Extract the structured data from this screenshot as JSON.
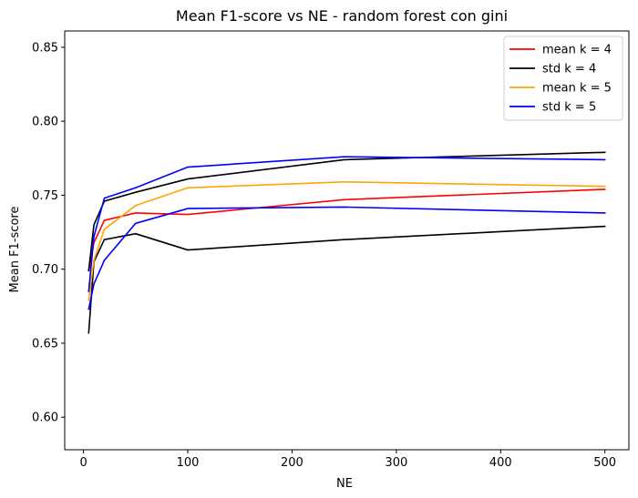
{
  "chart_data": {
    "type": "line",
    "title": "Mean F1-score vs NE - random forest con gini",
    "xlabel": "NE",
    "ylabel": "Mean F1-score",
    "xlim": [
      -18,
      523
    ],
    "ylim": [
      0.578,
      0.861
    ],
    "x_ticks": [
      0,
      100,
      200,
      300,
      400,
      500
    ],
    "y_ticks": [
      0.6,
      0.65,
      0.7,
      0.75,
      0.8,
      0.85
    ],
    "grid": false,
    "legend_position": "top-right",
    "x": [
      5,
      10,
      20,
      50,
      100,
      250,
      500
    ],
    "series": [
      {
        "name": "mean k = 4",
        "color": "#ff0000",
        "values": [
          0.699,
          0.718,
          0.733,
          0.738,
          0.737,
          0.747,
          0.754
        ]
      },
      {
        "name": "std k = 4",
        "color": "#000000",
        "values": [
          0.657,
          0.705,
          0.72,
          0.724,
          0.713,
          0.72,
          0.729
        ]
      },
      {
        "name": "std k = 4",
        "color": "#000000",
        "values": [
          0.699,
          0.73,
          0.746,
          0.752,
          0.761,
          0.774,
          0.779
        ]
      },
      {
        "name": "mean k = 5",
        "color": "#ffa500",
        "values": [
          0.679,
          0.706,
          0.727,
          0.743,
          0.755,
          0.759,
          0.756
        ]
      },
      {
        "name": "std k = 5",
        "color": "#0000ff",
        "values": [
          0.673,
          0.69,
          0.706,
          0.731,
          0.741,
          0.742,
          0.738
        ]
      },
      {
        "name": "std k = 5",
        "color": "#0000ff",
        "values": [
          0.685,
          0.722,
          0.748,
          0.755,
          0.769,
          0.776,
          0.774
        ]
      }
    ],
    "legend": [
      {
        "label": "mean k = 4",
        "color": "#ff0000"
      },
      {
        "label": "std k = 4",
        "color": "#000000"
      },
      {
        "label": "mean k = 5",
        "color": "#ffa500"
      },
      {
        "label": "std k = 5",
        "color": "#0000ff"
      }
    ]
  }
}
